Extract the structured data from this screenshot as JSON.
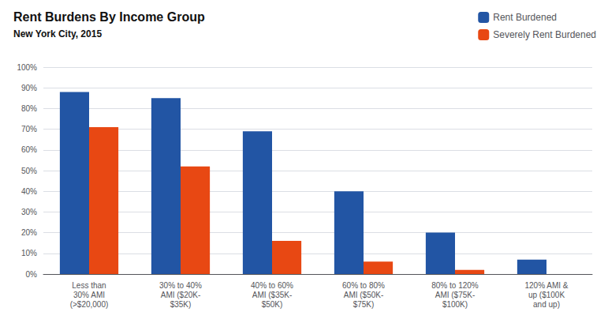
{
  "chart_data": {
    "type": "bar",
    "title": "Rent Burdens By Income Group",
    "subtitle": "New York City, 2015",
    "categories": [
      "Less than\n30% AMI\n(>$20,000)",
      "30% to 40%\nAMI ($20K-\n$35K)",
      "40% to 60%\nAMI ($35K-\n$50K)",
      "60% to 80%\nAMI ($50K-\n$75K)",
      "80% to 120%\nAMI ($75K-\n$100K)",
      "120% AMI &\nup ($100K\nand up)"
    ],
    "series": [
      {
        "name": "Rent Burdened",
        "color": "#2255a4",
        "values": [
          0.88,
          0.85,
          0.69,
          0.4,
          0.2,
          0.07
        ]
      },
      {
        "name": "Severely Rent Burdened",
        "color": "#e84813",
        "values": [
          0.71,
          0.52,
          0.16,
          0.06,
          0.02,
          0.0
        ]
      }
    ],
    "ylim": [
      0,
      1.0
    ],
    "yticks": [
      {
        "value": 0.0,
        "label": "0%"
      },
      {
        "value": 0.1,
        "label": "10%"
      },
      {
        "value": 0.2,
        "label": "20%"
      },
      {
        "value": 0.3,
        "label": "30%"
      },
      {
        "value": 0.4,
        "label": "40%"
      },
      {
        "value": 0.5,
        "label": "50%"
      },
      {
        "value": 0.6,
        "label": "60%"
      },
      {
        "value": 0.7,
        "label": "70%"
      },
      {
        "value": 0.8,
        "label": "80%"
      },
      {
        "value": 0.9,
        "label": "90%"
      },
      {
        "value": 1.0,
        "label": "100%"
      }
    ],
    "grid": true,
    "legend": "top-right"
  }
}
